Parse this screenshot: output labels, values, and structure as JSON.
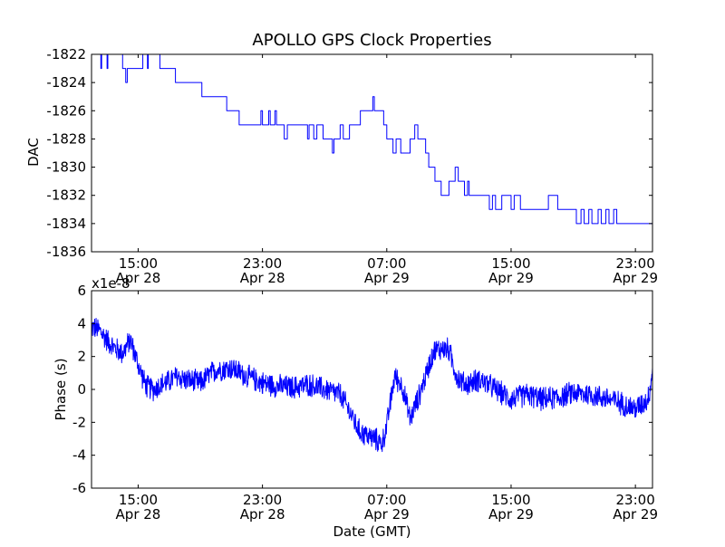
{
  "figure": {
    "title": "APOLLO GPS Clock Properties",
    "xlabel": "Date (GMT)",
    "line_color": "#0000ff",
    "x_ticks": [
      {
        "t": 15,
        "time": "15:00",
        "date": "Apr 28"
      },
      {
        "t": 23,
        "time": "23:00",
        "date": "Apr 28"
      },
      {
        "t": 31,
        "time": "07:00",
        "date": "Apr 29"
      },
      {
        "t": 39,
        "time": "15:00",
        "date": "Apr 29"
      },
      {
        "t": 47,
        "time": "23:00",
        "date": "Apr 29"
      }
    ]
  },
  "chart_data": [
    {
      "type": "line",
      "name": "dac",
      "title": "APOLLO GPS Clock Properties",
      "xlabel": "",
      "ylabel": "DAC",
      "x_unit": "hours since Apr 28 00:00 GMT",
      "xlim": [
        12.0,
        48.1
      ],
      "ylim": [
        -1836,
        -1822
      ],
      "yticks": [
        -1822,
        -1824,
        -1826,
        -1828,
        -1830,
        -1832,
        -1834,
        -1836
      ],
      "ytick_labels": [
        "-1822",
        "-1824",
        "-1826",
        "-1828",
        "-1830",
        "-1832",
        "-1834",
        "-1836"
      ],
      "series": [
        {
          "name": "DAC",
          "color": "#0000ff",
          "step": true,
          "x": [
            12.0,
            12.6,
            12.65,
            13.0,
            13.05,
            14.0,
            14.2,
            14.3,
            15.0,
            15.3,
            15.6,
            15.65,
            16.4,
            16.5,
            17.4,
            19.1,
            20.7,
            21.5,
            22.9,
            23.0,
            23.4,
            23.5,
            23.8,
            23.9,
            24.3,
            24.4,
            24.6,
            25.3,
            25.9,
            26.0,
            26.3,
            26.5,
            26.9,
            27.1,
            27.5,
            27.6,
            28.0,
            28.2,
            28.6,
            29.3,
            30.1,
            30.2,
            30.3,
            30.8,
            31.0,
            31.4,
            31.6,
            31.9,
            32.5,
            32.8,
            33.0,
            33.5,
            33.7,
            34.1,
            34.5,
            35.0,
            35.2,
            35.4,
            35.6,
            36.0,
            36.2,
            36.3,
            36.7,
            37.3,
            37.6,
            37.8,
            38.0,
            38.4,
            39.0,
            39.2,
            39.6,
            39.8,
            40.2,
            40.4,
            40.8,
            41.0,
            41.2,
            41.4,
            42.0,
            42.1,
            43.0,
            43.2,
            43.5,
            43.7,
            44.0,
            44.2,
            44.6,
            44.8,
            45.1,
            45.3,
            45.6,
            45.8,
            46.1,
            46.3,
            46.9,
            47.0,
            47.2,
            47.9,
            48.1
          ],
          "y": [
            -1822,
            -1823,
            -1822,
            -1823,
            -1822,
            -1823,
            -1824,
            -1823,
            -1823,
            -1822,
            -1823,
            -1822,
            -1823,
            -1823,
            -1824,
            -1825,
            -1826,
            -1827,
            -1826,
            -1827,
            -1826,
            -1827,
            -1826,
            -1827,
            -1827,
            -1828,
            -1827,
            -1827,
            -1828,
            -1827,
            -1828,
            -1827,
            -1828,
            -1828,
            -1829,
            -1828,
            -1827,
            -1828,
            -1827,
            -1826,
            -1825,
            -1826,
            -1826,
            -1827,
            -1828,
            -1829,
            -1828,
            -1829,
            -1828,
            -1827,
            -1828,
            -1829,
            -1830,
            -1831,
            -1832,
            -1831,
            -1831,
            -1830,
            -1831,
            -1832,
            -1831,
            -1832,
            -1832,
            -1832,
            -1833,
            -1832,
            -1833,
            -1832,
            -1833,
            -1832,
            -1833,
            -1833,
            -1833,
            -1833,
            -1833,
            -1833,
            -1833,
            -1832,
            -1833,
            -1833,
            -1833,
            -1834,
            -1833,
            -1834,
            -1833,
            -1834,
            -1833,
            -1834,
            -1833,
            -1834,
            -1833,
            -1834,
            -1834,
            -1834,
            -1834,
            -1834,
            -1834,
            -1834,
            -1835
          ]
        }
      ]
    },
    {
      "type": "line",
      "name": "phase",
      "title": "",
      "xlabel": "Date (GMT)",
      "ylabel": "Phase (s)",
      "x_unit": "hours since Apr 28 00:00 GMT",
      "y_scale_label": "x1e-8",
      "xlim": [
        12.0,
        48.1
      ],
      "ylim": [
        -6,
        6
      ],
      "yticks": [
        6,
        4,
        2,
        0,
        -2,
        -4,
        -6
      ],
      "ytick_labels": [
        "6",
        "4",
        "2",
        "0",
        "-2",
        "-4",
        "-6"
      ],
      "series": [
        {
          "name": "Phase",
          "color": "#0000ff",
          "noise_amplitude": 0.8,
          "x": [
            12.0,
            12.5,
            13.0,
            13.5,
            14.0,
            14.5,
            15.0,
            15.5,
            16.0,
            16.5,
            17.0,
            17.5,
            18.0,
            19.0,
            20.0,
            21.0,
            22.0,
            23.0,
            24.0,
            25.0,
            26.0,
            27.0,
            28.0,
            28.7,
            29.2,
            29.7,
            30.2,
            30.7,
            31.0,
            31.5,
            32.0,
            32.5,
            33.0,
            33.5,
            34.0,
            34.5,
            35.0,
            35.5,
            36.0,
            37.0,
            38.0,
            39.0,
            40.0,
            41.0,
            42.0,
            43.0,
            44.0,
            45.0,
            46.0,
            47.0,
            47.8,
            48.0,
            48.1
          ],
          "y": [
            3.8,
            3.6,
            3.0,
            2.5,
            2.2,
            3.0,
            1.5,
            0.2,
            0.0,
            0.3,
            0.5,
            0.8,
            0.6,
            0.4,
            1.2,
            1.3,
            0.8,
            0.4,
            0.2,
            0.1,
            0.3,
            0.0,
            -0.3,
            -1.5,
            -2.5,
            -2.8,
            -3.0,
            -3.3,
            -2.2,
            0.8,
            0.2,
            -1.8,
            -0.6,
            0.8,
            2.3,
            2.5,
            2.4,
            0.8,
            0.3,
            0.6,
            0.0,
            -0.6,
            -0.3,
            -0.6,
            -0.5,
            -0.2,
            -0.3,
            -0.5,
            -0.8,
            -1.2,
            -0.6,
            0.4,
            1.4
          ]
        }
      ]
    }
  ]
}
